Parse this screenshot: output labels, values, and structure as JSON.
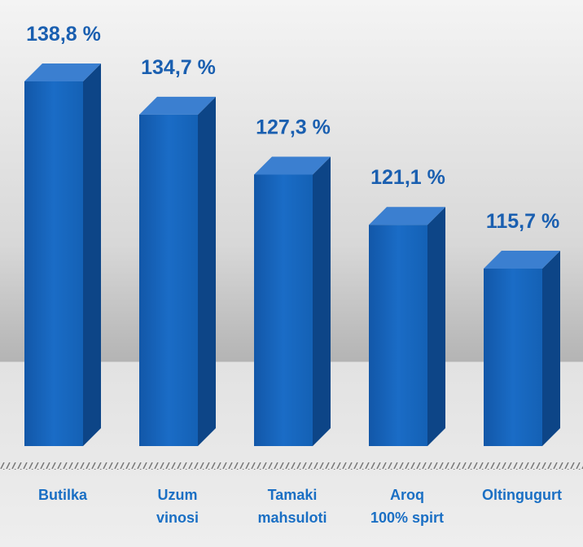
{
  "chart_data": {
    "type": "bar3d",
    "categories": [
      "Butilka",
      "Uzum\nvinosi",
      "Tamaki\nmahsuloti",
      "Aroq\n100% spirt",
      "Oltingugurt"
    ],
    "values": [
      138.8,
      134.7,
      127.3,
      121.1,
      115.7
    ],
    "value_labels": [
      "138,8 %",
      "134,7 %",
      "127,3 %",
      "121,1 %",
      "115,7 %"
    ],
    "color": "#1565c0"
  }
}
